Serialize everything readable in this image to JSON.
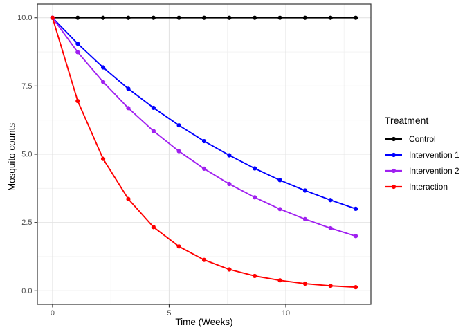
{
  "chart_data": {
    "type": "line",
    "title": "",
    "xlabel": "Time (Weeks)",
    "ylabel": "Mosquito counts",
    "legend_title": "Treatment",
    "legend_position": "right",
    "grid": true,
    "xlim": [
      0,
      13
    ],
    "ylim": [
      0,
      10
    ],
    "x_ticks": [
      0,
      5,
      10
    ],
    "x_tick_labels": [
      "0",
      "5",
      "10"
    ],
    "y_ticks": [
      0,
      2.5,
      5,
      7.5,
      10
    ],
    "y_tick_labels": [
      "0.0",
      "2.5",
      "5.0",
      "7.5",
      "10.0"
    ],
    "x_minor_gridlines": [
      2.5,
      7.5,
      12.5
    ],
    "y_minor_gridlines": [
      1.25,
      3.75,
      6.25,
      8.75
    ],
    "x": [
      0,
      1.08,
      2.17,
      3.25,
      4.33,
      5.42,
      6.5,
      7.58,
      8.67,
      9.75,
      10.83,
      11.92,
      13
    ],
    "series": [
      {
        "name": "Control",
        "color": "#000000",
        "values": [
          10,
          10,
          10,
          10,
          10,
          10,
          10,
          10,
          10,
          10,
          10,
          10,
          10
        ]
      },
      {
        "name": "Intervention 1",
        "color": "#0000FF",
        "values": [
          10,
          9.05,
          8.18,
          7.4,
          6.7,
          6.06,
          5.48,
          4.96,
          4.48,
          4.05,
          3.67,
          3.32,
          3.0
        ]
      },
      {
        "name": "Intervention 2",
        "color": "#A020F0",
        "values": [
          10,
          8.74,
          7.65,
          6.69,
          5.85,
          5.11,
          4.47,
          3.91,
          3.42,
          2.99,
          2.62,
          2.29,
          2.0
        ]
      },
      {
        "name": "Interaction",
        "color": "#FF0000",
        "values": [
          10,
          6.95,
          4.83,
          3.36,
          2.33,
          1.62,
          1.13,
          0.78,
          0.54,
          0.38,
          0.26,
          0.18,
          0.13
        ]
      }
    ]
  },
  "theme": {
    "background": "#FFFFFF",
    "panel_border": "#333333",
    "grid_major": "#E4E4E4",
    "grid_minor": "#F0F0F0",
    "tick_color": "#333333",
    "tick_text_color": "#4D4D4D",
    "axis_title_color": "#000000",
    "legend_text_color": "#000000"
  }
}
